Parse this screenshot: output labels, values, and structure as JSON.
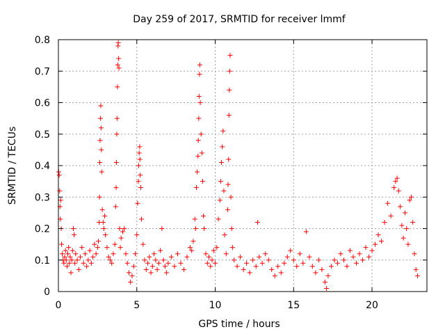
{
  "chart_data": {
    "type": "scatter",
    "title": "Day 259 of 2017, SRMTID for receiver lmmf",
    "xlabel": "GPS time / hours",
    "ylabel": "SRMTID / TECUs",
    "xlim": [
      0,
      23.5
    ],
    "ylim": [
      0,
      0.8
    ],
    "xticks": [
      0,
      5,
      10,
      15,
      20
    ],
    "xtick_labels": [
      "0",
      "5",
      "10",
      "15",
      "20"
    ],
    "yticks": [
      0,
      0.1,
      0.2,
      0.3,
      0.4,
      0.5,
      0.6,
      0.7,
      0.8
    ],
    "ytick_labels": [
      "0",
      "0.1",
      "0.2",
      "0.3",
      "0.4",
      "0.5",
      "0.6",
      "0.7",
      "0.8"
    ],
    "grid": true,
    "marker": "plus",
    "color": "#ff0000",
    "series": [
      {
        "name": "SRMTID",
        "points": [
          [
            0.02,
            0.38
          ],
          [
            0.05,
            0.37
          ],
          [
            0.08,
            0.32
          ],
          [
            0.1,
            0.27
          ],
          [
            0.12,
            0.23
          ],
          [
            0.15,
            0.29
          ],
          [
            0.18,
            0.2
          ],
          [
            0.2,
            0.15
          ],
          [
            0.25,
            0.12
          ],
          [
            0.3,
            0.1
          ],
          [
            0.35,
            0.09
          ],
          [
            0.4,
            0.11
          ],
          [
            0.45,
            0.13
          ],
          [
            0.5,
            0.1
          ],
          [
            0.55,
            0.08
          ],
          [
            0.6,
            0.12
          ],
          [
            0.65,
            0.14
          ],
          [
            0.7,
            0.09
          ],
          [
            0.75,
            0.11
          ],
          [
            0.8,
            0.06
          ],
          [
            0.85,
            0.1
          ],
          [
            0.9,
            0.13
          ],
          [
            0.95,
            0.2
          ],
          [
            1.0,
            0.18
          ],
          [
            1.05,
            0.09
          ],
          [
            1.1,
            0.12
          ],
          [
            1.2,
            0.1
          ],
          [
            1.3,
            0.07
          ],
          [
            1.4,
            0.11
          ],
          [
            1.5,
            0.14
          ],
          [
            1.6,
            0.09
          ],
          [
            1.7,
            0.12
          ],
          [
            1.8,
            0.08
          ],
          [
            1.9,
            0.1
          ],
          [
            2.0,
            0.13
          ],
          [
            2.1,
            0.09
          ],
          [
            2.2,
            0.11
          ],
          [
            2.3,
            0.15
          ],
          [
            2.4,
            0.12
          ],
          [
            2.5,
            0.14
          ],
          [
            2.55,
            0.16
          ],
          [
            2.6,
            0.22
          ],
          [
            2.62,
            0.3
          ],
          [
            2.64,
            0.41
          ],
          [
            2.66,
            0.48
          ],
          [
            2.68,
            0.55
          ],
          [
            2.7,
            0.59
          ],
          [
            2.72,
            0.52
          ],
          [
            2.74,
            0.45
          ],
          [
            2.76,
            0.38
          ],
          [
            2.8,
            0.26
          ],
          [
            2.85,
            0.22
          ],
          [
            2.9,
            0.2
          ],
          [
            2.95,
            0.24
          ],
          [
            3.0,
            0.18
          ],
          [
            3.1,
            0.14
          ],
          [
            3.2,
            0.11
          ],
          [
            3.3,
            0.1
          ],
          [
            3.4,
            0.09
          ],
          [
            3.5,
            0.12
          ],
          [
            3.6,
            0.15
          ],
          [
            3.65,
            0.27
          ],
          [
            3.68,
            0.33
          ],
          [
            3.7,
            0.41
          ],
          [
            3.72,
            0.5
          ],
          [
            3.74,
            0.55
          ],
          [
            3.76,
            0.65
          ],
          [
            3.78,
            0.72
          ],
          [
            3.8,
            0.78
          ],
          [
            3.82,
            0.79
          ],
          [
            3.84,
            0.74
          ],
          [
            3.86,
            0.71
          ],
          [
            3.9,
            0.2
          ],
          [
            3.95,
            0.14
          ],
          [
            4.0,
            0.17
          ],
          [
            4.1,
            0.19
          ],
          [
            4.2,
            0.2
          ],
          [
            4.3,
            0.12
          ],
          [
            4.4,
            0.09
          ],
          [
            4.5,
            0.06
          ],
          [
            4.6,
            0.03
          ],
          [
            4.7,
            0.05
          ],
          [
            4.8,
            0.08
          ],
          [
            4.9,
            0.12
          ],
          [
            5.0,
            0.18
          ],
          [
            5.05,
            0.28
          ],
          [
            5.1,
            0.35
          ],
          [
            5.12,
            0.4
          ],
          [
            5.15,
            0.44
          ],
          [
            5.18,
            0.46
          ],
          [
            5.2,
            0.42
          ],
          [
            5.22,
            0.37
          ],
          [
            5.25,
            0.33
          ],
          [
            5.3,
            0.23
          ],
          [
            5.4,
            0.15
          ],
          [
            5.5,
            0.1
          ],
          [
            5.6,
            0.07
          ],
          [
            5.7,
            0.09
          ],
          [
            5.8,
            0.11
          ],
          [
            5.9,
            0.06
          ],
          [
            6.0,
            0.08
          ],
          [
            6.1,
            0.12
          ],
          [
            6.2,
            0.1
          ],
          [
            6.3,
            0.07
          ],
          [
            6.4,
            0.09
          ],
          [
            6.5,
            0.13
          ],
          [
            6.6,
            0.2
          ],
          [
            6.7,
            0.1
          ],
          [
            6.8,
            0.08
          ],
          [
            6.9,
            0.06
          ],
          [
            7.0,
            0.09
          ],
          [
            7.2,
            0.11
          ],
          [
            7.4,
            0.08
          ],
          [
            7.6,
            0.12
          ],
          [
            7.8,
            0.09
          ],
          [
            8.0,
            0.07
          ],
          [
            8.2,
            0.11
          ],
          [
            8.4,
            0.14
          ],
          [
            8.5,
            0.13
          ],
          [
            8.6,
            0.16
          ],
          [
            8.7,
            0.23
          ],
          [
            8.75,
            0.2
          ],
          [
            8.8,
            0.33
          ],
          [
            8.85,
            0.38
          ],
          [
            8.9,
            0.43
          ],
          [
            8.92,
            0.48
          ],
          [
            8.95,
            0.55
          ],
          [
            8.97,
            0.62
          ],
          [
            9.0,
            0.69
          ],
          [
            9.02,
            0.72
          ],
          [
            9.05,
            0.6
          ],
          [
            9.1,
            0.5
          ],
          [
            9.15,
            0.44
          ],
          [
            9.2,
            0.35
          ],
          [
            9.25,
            0.24
          ],
          [
            9.3,
            0.2
          ],
          [
            9.4,
            0.12
          ],
          [
            9.5,
            0.09
          ],
          [
            9.6,
            0.11
          ],
          [
            9.7,
            0.08
          ],
          [
            9.8,
            0.1
          ],
          [
            9.9,
            0.13
          ],
          [
            10.0,
            0.09
          ],
          [
            10.1,
            0.14
          ],
          [
            10.2,
            0.23
          ],
          [
            10.3,
            0.29
          ],
          [
            10.35,
            0.35
          ],
          [
            10.4,
            0.41
          ],
          [
            10.45,
            0.46
          ],
          [
            10.5,
            0.51
          ],
          [
            10.55,
            0.32
          ],
          [
            10.6,
            0.18
          ],
          [
            10.7,
            0.12
          ],
          [
            10.8,
            0.26
          ],
          [
            10.82,
            0.34
          ],
          [
            10.85,
            0.42
          ],
          [
            10.88,
            0.56
          ],
          [
            10.9,
            0.64
          ],
          [
            10.92,
            0.7
          ],
          [
            10.95,
            0.75
          ],
          [
            11.0,
            0.3
          ],
          [
            11.05,
            0.2
          ],
          [
            11.1,
            0.14
          ],
          [
            11.2,
            0.1
          ],
          [
            11.4,
            0.08
          ],
          [
            11.6,
            0.11
          ],
          [
            11.8,
            0.07
          ],
          [
            12.0,
            0.09
          ],
          [
            12.2,
            0.06
          ],
          [
            12.4,
            0.1
          ],
          [
            12.6,
            0.08
          ],
          [
            12.7,
            0.22
          ],
          [
            12.8,
            0.11
          ],
          [
            13.0,
            0.09
          ],
          [
            13.2,
            0.12
          ],
          [
            13.4,
            0.1
          ],
          [
            13.6,
            0.07
          ],
          [
            13.8,
            0.05
          ],
          [
            14.0,
            0.08
          ],
          [
            14.2,
            0.06
          ],
          [
            14.4,
            0.09
          ],
          [
            14.6,
            0.11
          ],
          [
            14.8,
            0.13
          ],
          [
            15.0,
            0.1
          ],
          [
            15.2,
            0.08
          ],
          [
            15.4,
            0.12
          ],
          [
            15.6,
            0.09
          ],
          [
            15.8,
            0.19
          ],
          [
            16.0,
            0.11
          ],
          [
            16.2,
            0.08
          ],
          [
            16.4,
            0.06
          ],
          [
            16.6,
            0.1
          ],
          [
            16.8,
            0.07
          ],
          [
            17.0,
            0.03
          ],
          [
            17.1,
            0.01
          ],
          [
            17.2,
            0.05
          ],
          [
            17.4,
            0.08
          ],
          [
            17.6,
            0.1
          ],
          [
            17.8,
            0.09
          ],
          [
            18.0,
            0.12
          ],
          [
            18.2,
            0.1
          ],
          [
            18.4,
            0.08
          ],
          [
            18.6,
            0.13
          ],
          [
            18.8,
            0.11
          ],
          [
            19.0,
            0.09
          ],
          [
            19.2,
            0.12
          ],
          [
            19.4,
            0.1
          ],
          [
            19.6,
            0.14
          ],
          [
            19.8,
            0.11
          ],
          [
            20.0,
            0.13
          ],
          [
            20.2,
            0.15
          ],
          [
            20.4,
            0.18
          ],
          [
            20.6,
            0.16
          ],
          [
            20.8,
            0.22
          ],
          [
            21.0,
            0.28
          ],
          [
            21.2,
            0.24
          ],
          [
            21.4,
            0.33
          ],
          [
            21.5,
            0.35
          ],
          [
            21.6,
            0.36
          ],
          [
            21.7,
            0.32
          ],
          [
            21.8,
            0.27
          ],
          [
            21.9,
            0.21
          ],
          [
            22.0,
            0.17
          ],
          [
            22.1,
            0.25
          ],
          [
            22.2,
            0.2
          ],
          [
            22.3,
            0.15
          ],
          [
            22.4,
            0.29
          ],
          [
            22.5,
            0.3
          ],
          [
            22.6,
            0.22
          ],
          [
            22.7,
            0.12
          ],
          [
            22.8,
            0.07
          ],
          [
            22.9,
            0.05
          ]
        ]
      }
    ]
  }
}
